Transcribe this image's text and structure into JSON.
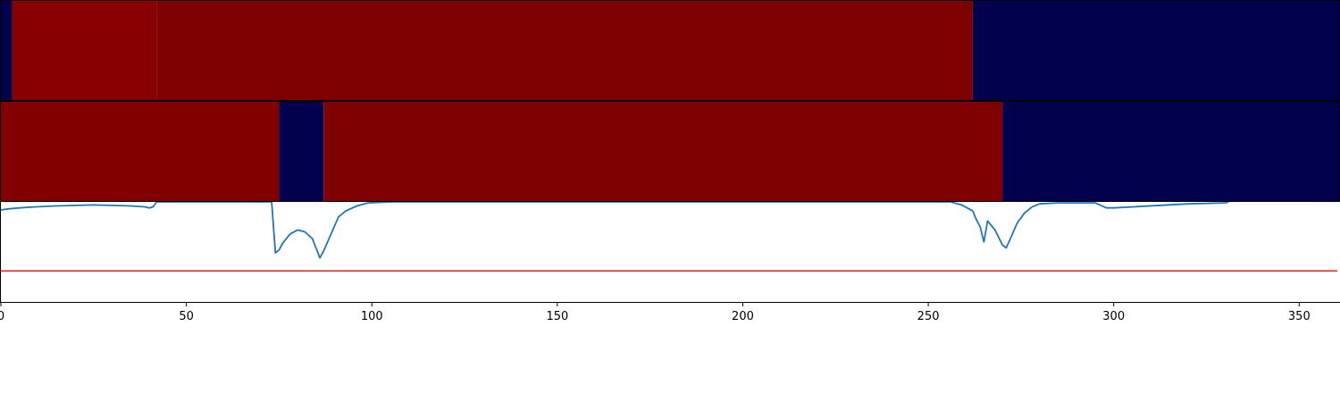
{
  "chart_data": [
    {
      "type": "heatmap",
      "xlim": [
        0,
        361
      ],
      "segments": [
        {
          "x0": 0,
          "x1": 3,
          "state": "low",
          "color": "#00004c"
        },
        {
          "x0": 3,
          "x1": 42,
          "state": "high",
          "color": "#880000"
        },
        {
          "x0": 42,
          "x1": 262,
          "state": "high",
          "color": "#7f0000"
        },
        {
          "x0": 262,
          "x1": 361,
          "state": "low",
          "color": "#00004c"
        }
      ]
    },
    {
      "type": "heatmap",
      "xlim": [
        0,
        361
      ],
      "segments": [
        {
          "x0": 0,
          "x1": 75,
          "state": "high",
          "color": "#820000"
        },
        {
          "x0": 75,
          "x1": 87,
          "state": "low",
          "color": "#00004c"
        },
        {
          "x0": 87,
          "x1": 270,
          "state": "high",
          "color": "#7f0000"
        },
        {
          "x0": 270,
          "x1": 361,
          "state": "low",
          "color": "#00004c"
        }
      ]
    },
    {
      "type": "line",
      "xlim": [
        0,
        361
      ],
      "ylim": [
        0,
        1
      ],
      "grid": false,
      "line_color": "#1f77b4",
      "threshold": {
        "y": 0.31,
        "color": "#d62728"
      },
      "series": [
        {
          "x": [
            0,
            2,
            5,
            9,
            15,
            25,
            35,
            39,
            40,
            41,
            42,
            73,
            74,
            75,
            76,
            78,
            80,
            82,
            84,
            86,
            87,
            89,
            91,
            93,
            96,
            99,
            105,
            130,
            180,
            230,
            256,
            259,
            262,
            263,
            264,
            265,
            266,
            268,
            270,
            271,
            272,
            274,
            276,
            278,
            280,
            285,
            295,
            298,
            300,
            305,
            320,
            330,
            331
          ],
          "y": [
            0.92,
            0.93,
            0.94,
            0.95,
            0.96,
            0.97,
            0.96,
            0.95,
            0.94,
            0.95,
            1.0,
            1.0,
            0.49,
            0.52,
            0.59,
            0.68,
            0.72,
            0.7,
            0.63,
            0.44,
            0.51,
            0.68,
            0.85,
            0.91,
            0.96,
            0.99,
            1.0,
            1.0,
            1.0,
            1.0,
            1.0,
            0.97,
            0.91,
            0.82,
            0.75,
            0.6,
            0.81,
            0.72,
            0.57,
            0.54,
            0.62,
            0.79,
            0.89,
            0.95,
            0.98,
            0.99,
            0.99,
            0.94,
            0.94,
            0.95,
            0.98,
            0.99,
            1.0
          ]
        }
      ]
    }
  ],
  "x_axis": {
    "ticks": [
      0,
      50,
      100,
      150,
      200,
      250,
      300,
      350
    ],
    "tick_labels": [
      "0",
      "50",
      "100",
      "150",
      "200",
      "250",
      "300",
      "350"
    ]
  }
}
